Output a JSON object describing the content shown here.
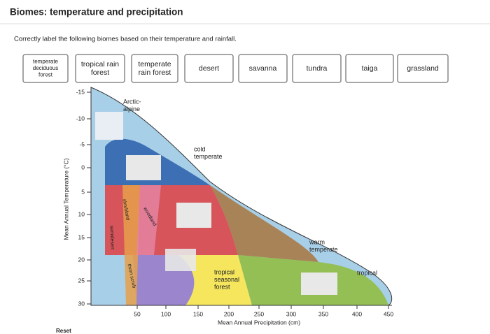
{
  "header": {
    "title": "Biomes: temperature and precipitation"
  },
  "instructions": "Correctly label the following biomes based on their temperature and rainfall.",
  "labels": [
    [
      "temperate",
      "deciduous",
      "forest"
    ],
    [
      "tropical rain",
      "forest"
    ],
    [
      "temperate",
      "rain forest"
    ],
    [
      "desert"
    ],
    [
      "savanna"
    ],
    [
      "tundra"
    ],
    [
      "taiga"
    ],
    [
      "grassland"
    ]
  ],
  "diagram": {
    "y_axis_title": "Mean Annual Temperature (°C)",
    "x_axis_title": "Mean Annual Precipitation (cm)",
    "y_ticks": [
      "-15",
      "-10",
      "-5",
      "0",
      "5",
      "10",
      "15",
      "20",
      "25",
      "30"
    ],
    "x_ticks": [
      "50",
      "100",
      "150",
      "200",
      "250",
      "300",
      "350",
      "400",
      "450"
    ],
    "regions": [
      [
        "Arctic-",
        "alpine"
      ],
      [
        "cold",
        "temperate"
      ],
      [
        "warm",
        "temperate"
      ],
      [
        "tropical"
      ],
      [
        "tropical",
        "seasonal",
        "forest"
      ]
    ],
    "strips": [
      "woodland",
      "shrubland",
      "semidesert",
      "thorn scrub"
    ]
  },
  "reset": "Reset"
}
